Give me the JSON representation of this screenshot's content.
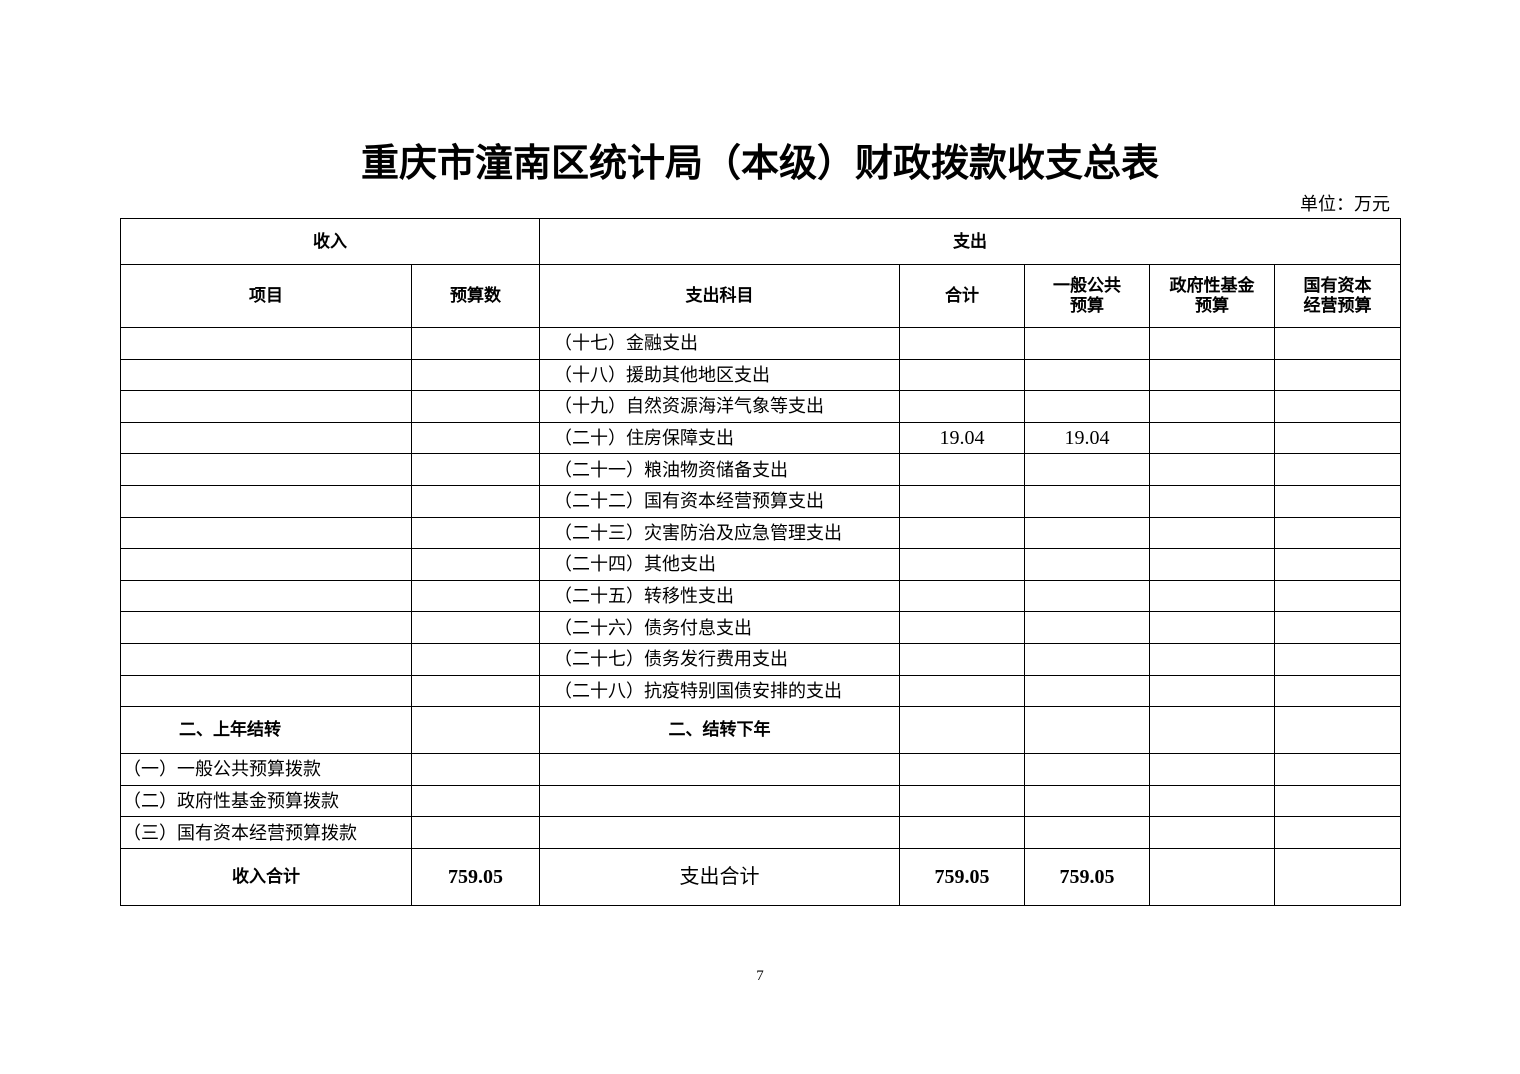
{
  "title": "重庆市潼南区统计局（本级）财政拨款收支总表",
  "unit": "单位：万元",
  "header": {
    "income": "收入",
    "expense": "支出",
    "item": "项目",
    "budget": "预算数",
    "expense_subject": "支出科目",
    "total": "合计",
    "general_public_1": "一般公共",
    "general_public_2": "预算",
    "gov_fund_1": "政府性基金",
    "gov_fund_2": "预算",
    "state_capital_1": "国有资本",
    "state_capital_2": "经营预算"
  },
  "rows": [
    {
      "item": "",
      "budget": "",
      "subject": "（十七）金融支出",
      "total": "",
      "general": "",
      "fund": "",
      "capital": ""
    },
    {
      "item": "",
      "budget": "",
      "subject": "（十八）援助其他地区支出",
      "total": "",
      "general": "",
      "fund": "",
      "capital": ""
    },
    {
      "item": "",
      "budget": "",
      "subject": "（十九）自然资源海洋气象等支出",
      "total": "",
      "general": "",
      "fund": "",
      "capital": ""
    },
    {
      "item": "",
      "budget": "",
      "subject": "（二十）住房保障支出",
      "total": "19.04",
      "general": "19.04",
      "fund": "",
      "capital": ""
    },
    {
      "item": "",
      "budget": "",
      "subject": "（二十一）粮油物资储备支出",
      "total": "",
      "general": "",
      "fund": "",
      "capital": ""
    },
    {
      "item": "",
      "budget": "",
      "subject": "（二十二）国有资本经营预算支出",
      "total": "",
      "general": "",
      "fund": "",
      "capital": ""
    },
    {
      "item": "",
      "budget": "",
      "subject": "（二十三）灾害防治及应急管理支出",
      "total": "",
      "general": "",
      "fund": "",
      "capital": ""
    },
    {
      "item": "",
      "budget": "",
      "subject": "（二十四）其他支出",
      "total": "",
      "general": "",
      "fund": "",
      "capital": ""
    },
    {
      "item": "",
      "budget": "",
      "subject": "（二十五）转移性支出",
      "total": "",
      "general": "",
      "fund": "",
      "capital": ""
    },
    {
      "item": "",
      "budget": "",
      "subject": "（二十六）债务付息支出",
      "total": "",
      "general": "",
      "fund": "",
      "capital": ""
    },
    {
      "item": "",
      "budget": "",
      "subject": "（二十七）债务发行费用支出",
      "total": "",
      "general": "",
      "fund": "",
      "capital": ""
    },
    {
      "item": "",
      "budget": "",
      "subject": "（二十八）抗疫特别国债安排的支出",
      "total": "",
      "general": "",
      "fund": "",
      "capital": ""
    }
  ],
  "carry": {
    "income_label": "二、上年结转",
    "expense_label": "二、结转下年"
  },
  "carry_rows": [
    {
      "item": "（一）一般公共预算拨款"
    },
    {
      "item": "（二）政府性基金预算拨款"
    },
    {
      "item": "（三）国有资本经营预算拨款"
    }
  ],
  "totals": {
    "income_label": "收入合计",
    "income_value": "759.05",
    "expense_label": "支出合计",
    "expense_total": "759.05",
    "expense_general": "759.05",
    "expense_fund": "",
    "expense_capital": ""
  },
  "page_number": "7"
}
